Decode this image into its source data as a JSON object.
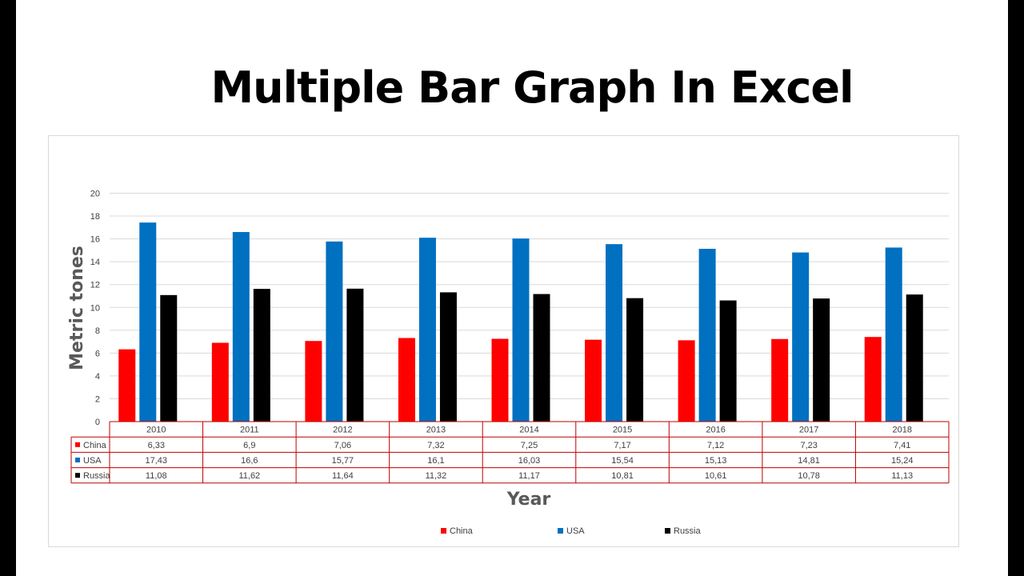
{
  "page": {
    "title": "Multiple Bar Graph In Excel"
  },
  "chart_data": {
    "type": "bar",
    "title": "",
    "xlabel": "Year",
    "ylabel": "Metric tones",
    "ylim": [
      0,
      20
    ],
    "yticks": [
      0,
      2,
      4,
      6,
      8,
      10,
      12,
      14,
      16,
      18,
      20
    ],
    "grid": true,
    "legend": "bottom",
    "data_table": true,
    "categories": [
      "2010",
      "2011",
      "2012",
      "2013",
      "2014",
      "2015",
      "2016",
      "2017",
      "2018"
    ],
    "series": [
      {
        "name": "China",
        "color": "#ff0000",
        "values": [
          6.33,
          6.9,
          7.06,
          7.32,
          7.25,
          7.17,
          7.12,
          7.23,
          7.41
        ],
        "labels": [
          "6,33",
          "6,9",
          "7,06",
          "7,32",
          "7,25",
          "7,17",
          "7,12",
          "7,23",
          "7,41"
        ]
      },
      {
        "name": "USA",
        "color": "#0070c0",
        "values": [
          17.43,
          16.6,
          15.77,
          16.1,
          16.03,
          15.54,
          15.13,
          14.81,
          15.24
        ],
        "labels": [
          "17,43",
          "16,6",
          "15,77",
          "16,1",
          "16,03",
          "15,54",
          "15,13",
          "14,81",
          "15,24"
        ]
      },
      {
        "name": "Russia",
        "color": "#000000",
        "values": [
          11.08,
          11.62,
          11.64,
          11.32,
          11.17,
          10.81,
          10.61,
          10.78,
          11.13
        ],
        "labels": [
          "11,08",
          "11,62",
          "11,64",
          "11,32",
          "11,17",
          "10,81",
          "10,61",
          "10,78",
          "11,13"
        ]
      }
    ],
    "table_border_color": "#c00000",
    "gridline_color": "#d9d9d9"
  }
}
